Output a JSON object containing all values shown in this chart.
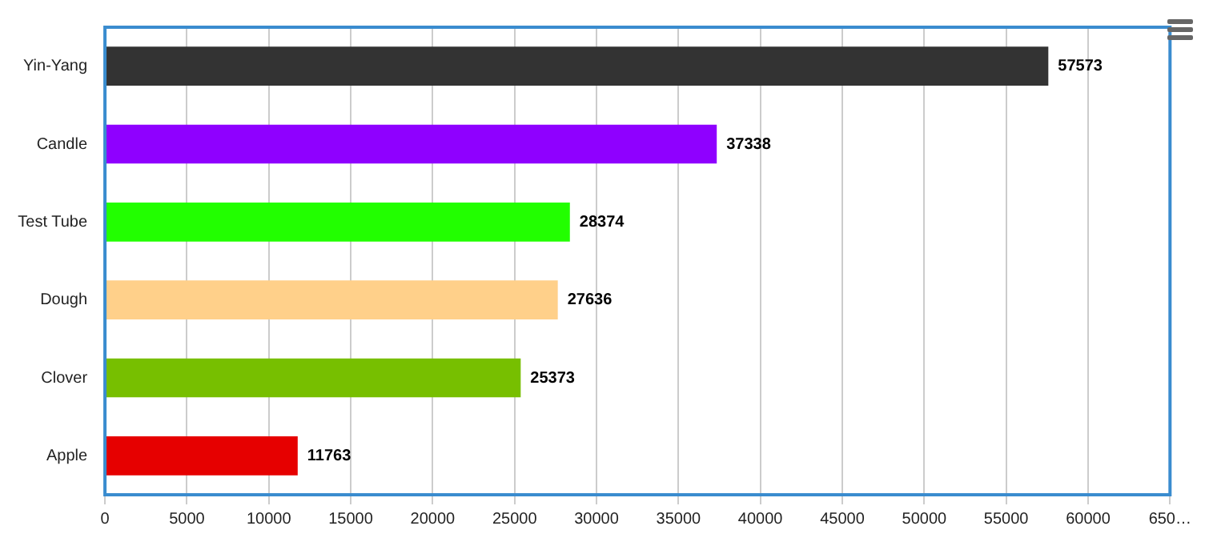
{
  "chart_data": {
    "type": "bar",
    "orientation": "horizontal",
    "categories": [
      "Yin-Yang",
      "Candle",
      "Test Tube",
      "Dough",
      "Clover",
      "Apple"
    ],
    "values": [
      57573,
      37338,
      28374,
      27636,
      25373,
      11763
    ],
    "colors": [
      "#333333",
      "#8f00ff",
      "#22ff00",
      "#ffd08a",
      "#77bf00",
      "#e60000"
    ],
    "xlim": [
      0,
      65000
    ],
    "xticks": [
      0,
      5000,
      10000,
      15000,
      20000,
      25000,
      30000,
      35000,
      40000,
      45000,
      50000,
      55000,
      60000,
      {
        "value": 65000,
        "label": "650…"
      }
    ],
    "grid": "x",
    "data_labels": true,
    "legend": false
  }
}
